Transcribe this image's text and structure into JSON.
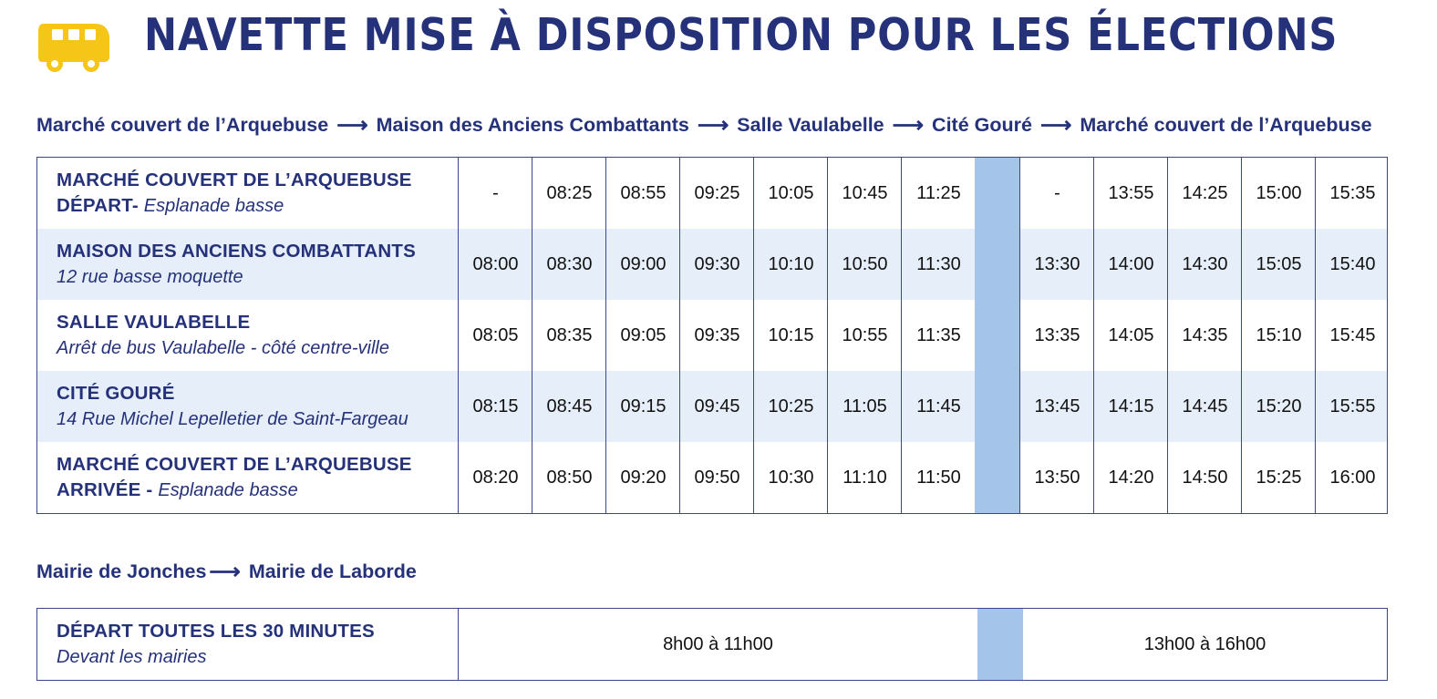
{
  "title": "NAVETTE MISE À DISPOSITION POUR LES ÉLECTIONS",
  "icons": {
    "header": "bus-icon",
    "route_arrow": "arrow-right-icon"
  },
  "colors": {
    "navy": "#25327a",
    "accent_yellow": "#f5c518",
    "light_row": "#e6eef9",
    "break_column": "#a4c4ea"
  },
  "route1": {
    "stops": [
      "Marché couvert de l’Arquebuse",
      "Maison des Anciens Combattants",
      "Salle Vaulabelle",
      "Cité Gouré",
      "Marché couvert de l’Arquebuse"
    ],
    "arrow": "⟶"
  },
  "timetable": {
    "rows": [
      {
        "name": "MARCHÉ COUVERT DE L’ARQUEBUSE",
        "name2": "DÉPART-",
        "sub": "Esplanade basse",
        "times": [
          "-",
          "08:25",
          "08:55",
          "09:25",
          "10:05",
          "10:45",
          "11:25",
          "-",
          "13:55",
          "14:25",
          "15:00",
          "15:35"
        ]
      },
      {
        "name": "MAISON DES ANCIENS COMBATTANTS",
        "sub": "12 rue basse moquette",
        "times": [
          "08:00",
          "08:30",
          "09:00",
          "09:30",
          "10:10",
          "10:50",
          "11:30",
          "13:30",
          "14:00",
          "14:30",
          "15:05",
          "15:40"
        ]
      },
      {
        "name": "SALLE VAULABELLE",
        "sub": "Arrêt de bus Vaulabelle - côté centre-ville",
        "times": [
          "08:05",
          "08:35",
          "09:05",
          "09:35",
          "10:15",
          "10:55",
          "11:35",
          "13:35",
          "14:05",
          "14:35",
          "15:10",
          "15:45"
        ]
      },
      {
        "name": "CITÉ GOURÉ",
        "sub": "14 Rue Michel Lepelletier de Saint-Fargeau",
        "times": [
          "08:15",
          "08:45",
          "09:15",
          "09:45",
          "10:25",
          "11:05",
          "11:45",
          "13:45",
          "14:15",
          "14:45",
          "15:20",
          "15:55"
        ]
      },
      {
        "name": "MARCHÉ COUVERT DE L’ARQUEBUSE",
        "name2": "ARRIVÉE -",
        "sub": "Esplanade basse",
        "times": [
          "08:20",
          "08:50",
          "09:20",
          "09:50",
          "10:30",
          "11:10",
          "11:50",
          "13:50",
          "14:20",
          "14:50",
          "15:25",
          "16:00"
        ]
      }
    ]
  },
  "route2": {
    "stops": [
      "Mairie de Jonches",
      "Mairie de Laborde"
    ],
    "arrow": "⟶"
  },
  "shuttle2": {
    "name": "DÉPART TOUTES LES 30 MINUTES",
    "sub": "Devant les mairies",
    "morning": "8h00 à 11h00",
    "afternoon": "13h00 à 16h00"
  }
}
